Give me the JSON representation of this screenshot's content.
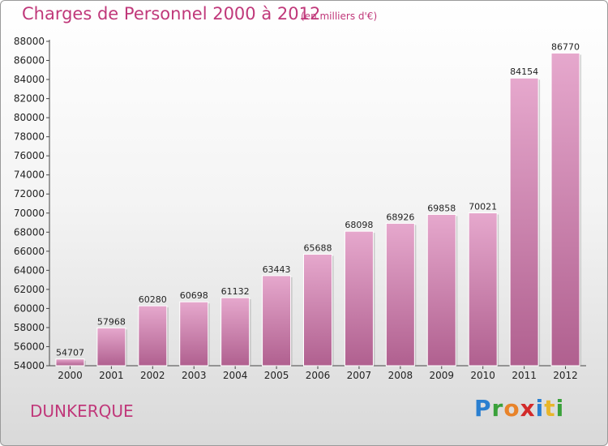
{
  "header": {
    "title": "Charges de Personnel 2000 à 2012",
    "subtitle": "(en milliers d'€)"
  },
  "footer": {
    "city": "DUNKERQUE",
    "logo": {
      "chars": [
        "P",
        "r",
        "o",
        "x",
        "i",
        "t",
        "i"
      ]
    }
  },
  "colors": {
    "title": "#c0387a",
    "bar_top": "#e6a8cd",
    "bar_bottom": "#b0608f"
  },
  "chart_data": {
    "type": "bar",
    "categories": [
      "2000",
      "2001",
      "2002",
      "2003",
      "2004",
      "2005",
      "2006",
      "2007",
      "2008",
      "2009",
      "2010",
      "2011",
      "2012"
    ],
    "values": [
      54707,
      57968,
      60280,
      60698,
      61132,
      63443,
      65688,
      68098,
      68926,
      69858,
      70021,
      84154,
      86770
    ],
    "data_labels": [
      "54707",
      "57968",
      "60280",
      "60698",
      "61132",
      "63443",
      "65688",
      "68098",
      "68926",
      "69858",
      "70021",
      "84154",
      "86770"
    ],
    "ylim": [
      54000,
      88000
    ],
    "yticks": [
      "54000",
      "56000",
      "58000",
      "60000",
      "62000",
      "64000",
      "66000",
      "68000",
      "70000",
      "72000",
      "74000",
      "76000",
      "78000",
      "80000",
      "82000",
      "84000",
      "86000",
      "88000"
    ],
    "title": "Charges de Personnel 2000 à 2012",
    "xlabel": "",
    "ylabel": "",
    "grid": false,
    "legend": "none"
  }
}
